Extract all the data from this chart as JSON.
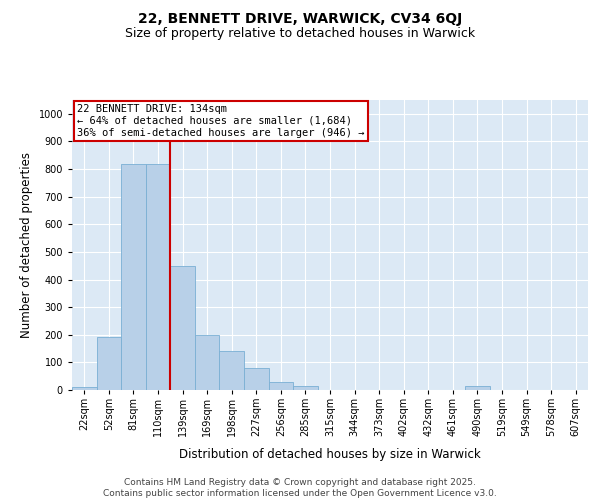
{
  "title": "22, BENNETT DRIVE, WARWICK, CV34 6QJ",
  "subtitle": "Size of property relative to detached houses in Warwick",
  "xlabel": "Distribution of detached houses by size in Warwick",
  "ylabel": "Number of detached properties",
  "categories": [
    "22sqm",
    "52sqm",
    "81sqm",
    "110sqm",
    "139sqm",
    "169sqm",
    "198sqm",
    "227sqm",
    "256sqm",
    "285sqm",
    "315sqm",
    "344sqm",
    "373sqm",
    "402sqm",
    "432sqm",
    "461sqm",
    "490sqm",
    "519sqm",
    "549sqm",
    "578sqm",
    "607sqm"
  ],
  "bar_values": [
    10,
    193,
    820,
    820,
    450,
    200,
    140,
    80,
    30,
    15,
    0,
    0,
    0,
    0,
    0,
    0,
    15,
    0,
    0,
    0,
    0
  ],
  "bar_color": "#b8d0e8",
  "bar_edge_color": "#7aafd4",
  "vline_color": "#cc0000",
  "vline_pos": 3.5,
  "annotation_text": "22 BENNETT DRIVE: 134sqm\n← 64% of detached houses are smaller (1,684)\n36% of semi-detached houses are larger (946) →",
  "annotation_box_color": "#cc0000",
  "ylim": [
    0,
    1050
  ],
  "yticks": [
    0,
    100,
    200,
    300,
    400,
    500,
    600,
    700,
    800,
    900,
    1000
  ],
  "plot_background": "#dce9f5",
  "grid_color": "#ffffff",
  "footer": "Contains HM Land Registry data © Crown copyright and database right 2025.\nContains public sector information licensed under the Open Government Licence v3.0.",
  "title_fontsize": 10,
  "subtitle_fontsize": 9,
  "axis_label_fontsize": 8.5,
  "tick_fontsize": 7,
  "footer_fontsize": 6.5,
  "annotation_fontsize": 7.5
}
